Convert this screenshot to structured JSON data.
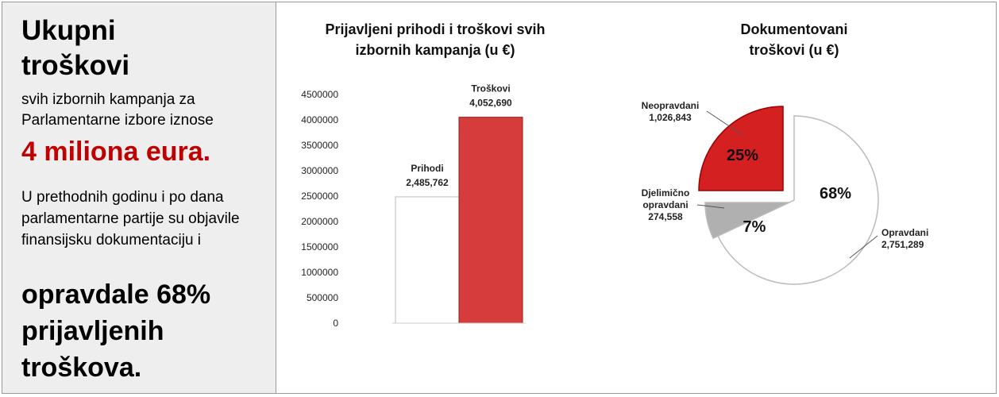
{
  "panel": {
    "title": "Ukupni troškovi",
    "lead": "svih izbornih kampanja za Parlamentarne izbore iznose",
    "highlight": "4 miliona eura.",
    "body": "U prethodnih godinu i po dana parlamentarne partije su objavile finansijsku dokumentaciju i",
    "conclusion": "opravdale 68% prijavljenih troškova."
  },
  "chart_data": [
    {
      "type": "bar",
      "title": "Prijavljeni prihodi i troškovi svih izbornih kampanja (u €)",
      "categories": [
        "Prihodi",
        "Troškovi"
      ],
      "values": [
        2485762,
        4052690
      ],
      "value_labels": [
        "2,485,762",
        "4,052,690"
      ],
      "colors": [
        "#ffffff",
        "#d63c3c"
      ],
      "ylim": [
        0,
        4500000
      ],
      "yticks": [
        0,
        500000,
        1000000,
        1500000,
        2000000,
        2500000,
        3000000,
        3500000,
        4000000,
        4500000
      ]
    },
    {
      "type": "pie",
      "title": "Dokumentovani troškovi (u €)",
      "categories": [
        "Opravdani",
        "Djelimično opravdani",
        "Neopravdani"
      ],
      "values": [
        68,
        7,
        25
      ],
      "value_labels": [
        "68%",
        "7%",
        "25%"
      ],
      "amounts": [
        2751289,
        274558,
        1026843
      ],
      "amount_labels": [
        "2,751,289",
        "274,558",
        "1,026,843"
      ],
      "colors": [
        "#ffffff",
        "#b0b0b0",
        "#d42020"
      ]
    }
  ]
}
